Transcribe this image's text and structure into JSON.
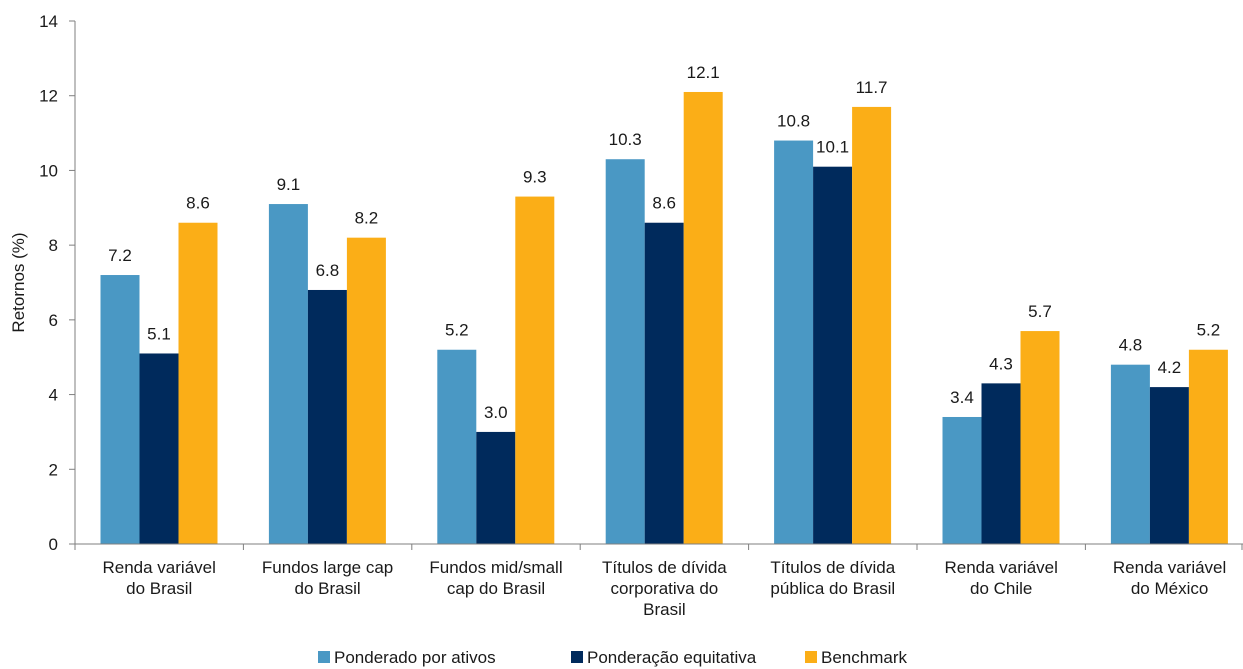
{
  "chart_data": {
    "type": "bar",
    "title": "",
    "xlabel": "",
    "ylabel": "Retornos (%)",
    "ylim": [
      0,
      14
    ],
    "yticks": [
      0,
      2,
      4,
      6,
      8,
      10,
      12,
      14
    ],
    "grid": false,
    "legend_position": "bottom",
    "categories": [
      [
        "Renda variável",
        "do Brasil"
      ],
      [
        "Fundos large cap",
        "do Brasil"
      ],
      [
        "Fundos mid/small",
        "cap do Brasil"
      ],
      [
        "Títulos de dívida",
        "corporativa do",
        "Brasil"
      ],
      [
        "Títulos de dívida",
        "pública do Brasil"
      ],
      [
        "Renda variável",
        "do Chile"
      ],
      [
        "Renda variável",
        "do México"
      ]
    ],
    "series": [
      {
        "name": "Ponderado por ativos",
        "color": "#4a98c4",
        "values": [
          7.2,
          9.1,
          5.2,
          10.3,
          10.8,
          3.4,
          4.8
        ],
        "labels": [
          "7.2",
          "9.1",
          "5.2",
          "10.3",
          "10.8",
          "3.4",
          "4.8"
        ]
      },
      {
        "name": "Ponderação equitativa",
        "color": "#002a5c",
        "values": [
          5.1,
          6.8,
          3.0,
          8.6,
          10.1,
          4.3,
          4.2
        ],
        "labels": [
          "5.1",
          "6.8",
          "3.0",
          "8.6",
          "10.1",
          "4.3",
          "4.2"
        ]
      },
      {
        "name": "Benchmark",
        "color": "#fbae17",
        "values": [
          8.6,
          8.2,
          9.3,
          12.1,
          11.7,
          5.7,
          5.2
        ],
        "labels": [
          "8.6",
          "8.2",
          "9.3",
          "12.1",
          "11.7",
          "5.7",
          "5.2"
        ]
      }
    ]
  }
}
